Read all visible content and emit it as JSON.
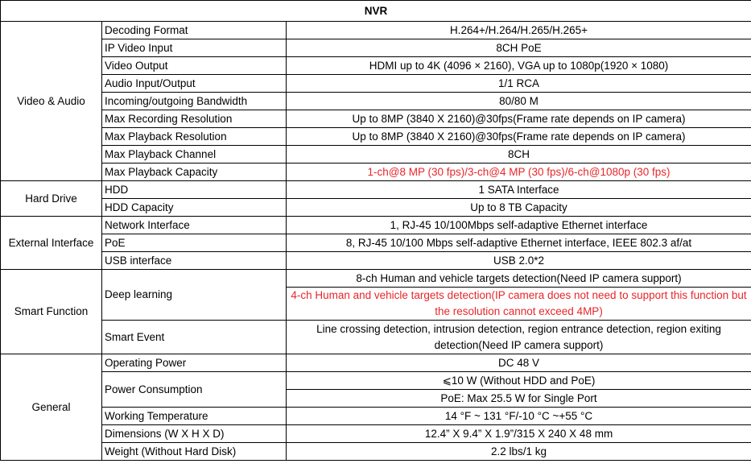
{
  "title": "NVR",
  "highlight_color": "#e8262a",
  "groups": [
    {
      "name": "Video & Audio",
      "rows": [
        {
          "label": "Decoding Format",
          "values": [
            "H.264+/H.264/H.265/H.265+"
          ]
        },
        {
          "label": "IP Video Input",
          "values": [
            "8CH PoE"
          ]
        },
        {
          "label": "Video Output",
          "values": [
            "HDMI up to 4K (4096 × 2160), VGA up to 1080p(1920 × 1080)"
          ]
        },
        {
          "label": "Audio Input/Output",
          "values": [
            "1/1 RCA"
          ]
        },
        {
          "label": "Incoming/outgoing Bandwidth",
          "values": [
            "80/80 M"
          ]
        },
        {
          "label": "Max Recording Resolution",
          "values": [
            "Up to 8MP (3840 X 2160)@30fps(Frame rate depends on IP camera)"
          ]
        },
        {
          "label": "Max Playback Resolution",
          "values": [
            "Up to 8MP (3840 X 2160)@30fps(Frame rate depends on IP camera)"
          ]
        },
        {
          "label": "Max Playback Channel",
          "values": [
            "8CH"
          ]
        },
        {
          "label": "Max Playback Capacity",
          "values": [
            "1-ch@8 MP (30 fps)/3-ch@4 MP (30 fps)/6-ch@1080p (30 fps)"
          ],
          "red": [
            true
          ]
        }
      ]
    },
    {
      "name": "Hard Drive",
      "rows": [
        {
          "label": "HDD",
          "values": [
            "1 SATA Interface"
          ]
        },
        {
          "label": "HDD Capacity",
          "values": [
            "Up to 8 TB Capacity"
          ]
        }
      ]
    },
    {
      "name": "External Interface",
      "rows": [
        {
          "label": "Network Interface",
          "values": [
            "1, RJ-45 10/100Mbps self-adaptive Ethernet interface"
          ]
        },
        {
          "label": "PoE",
          "values": [
            "8, RJ-45 10/100 Mbps self-adaptive Ethernet interface, IEEE 802.3 af/at"
          ]
        },
        {
          "label": "USB interface",
          "values": [
            "USB 2.0*2"
          ]
        }
      ]
    },
    {
      "name": "Smart Function",
      "rows": [
        {
          "label": "Deep learning",
          "values": [
            "8-ch Human and vehicle targets detection(Need IP camera support)",
            "4-ch Human and vehicle targets detection(IP camera does not need to support this function but the resolution cannot exceed 4MP)"
          ],
          "red": [
            false,
            true
          ]
        },
        {
          "label": "Smart Event",
          "values": [
            "Line crossing detection, intrusion detection, region entrance detection, region exiting detection(Need IP camera support)"
          ]
        }
      ]
    },
    {
      "name": "General",
      "rows": [
        {
          "label": "Operating Power",
          "values": [
            "DC 48 V"
          ]
        },
        {
          "label": "Power Consumption",
          "values": [
            "⩽10 W (Without HDD and PoE)",
            "PoE: Max 25.5 W for Single Port"
          ]
        },
        {
          "label": "Working Temperature",
          "values": [
            "14 °F ~ 131 °F/-10 °C ~+55 °C"
          ]
        },
        {
          "label": "Dimensions (W X H X D)",
          "values": [
            "12.4” X 9.4” X 1.9”/315 X 240 X 48 mm"
          ]
        },
        {
          "label": "Weight (Without Hard Disk)",
          "values": [
            "2.2 lbs/1 kg"
          ]
        }
      ]
    }
  ]
}
